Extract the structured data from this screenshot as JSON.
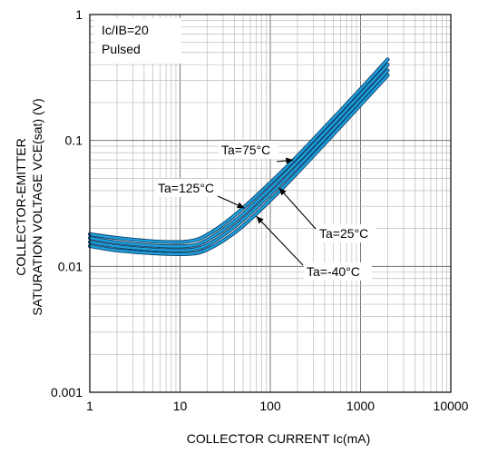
{
  "chart_data": {
    "type": "line",
    "x_scale": "log",
    "y_scale": "log",
    "xlim": [
      1,
      10000
    ],
    "ylim": [
      0.001,
      1
    ],
    "x_ticks": [
      "1",
      "10",
      "100",
      "1000",
      "10000"
    ],
    "y_ticks": [
      "0.001",
      "0.01",
      "0.1",
      "1"
    ],
    "xlabel": "COLLECTOR CURRENT  Ic(mA)",
    "ylabel_line1": "COLLECTOR-EMITTER",
    "ylabel_line2": "SATURATION VOLTAGE  VCE(sat)  (V)",
    "grid": true,
    "condition_line1": "Ic/IB=20",
    "condition_line2": "Pulsed",
    "line_color": "#1ea0dc",
    "series": [
      {
        "name": "Ta=125°C",
        "x": [
          1,
          2,
          5,
          10,
          15,
          20,
          30,
          50,
          100,
          200,
          500,
          1000,
          2000
        ],
        "y": [
          0.018,
          0.0168,
          0.0158,
          0.0156,
          0.0162,
          0.0178,
          0.0215,
          0.029,
          0.046,
          0.075,
          0.15,
          0.255,
          0.44
        ]
      },
      {
        "name": "Ta=75°C",
        "x": [
          1,
          2,
          5,
          10,
          15,
          20,
          30,
          50,
          100,
          200,
          500,
          1000,
          2000
        ],
        "y": [
          0.0168,
          0.0155,
          0.0146,
          0.0144,
          0.0148,
          0.0162,
          0.0195,
          0.026,
          0.0415,
          0.068,
          0.136,
          0.232,
          0.4
        ]
      },
      {
        "name": "Ta=25°C",
        "x": [
          1,
          2,
          5,
          10,
          15,
          20,
          30,
          50,
          100,
          200,
          500,
          1000,
          2000
        ],
        "y": [
          0.0156,
          0.0144,
          0.0136,
          0.0134,
          0.0137,
          0.0148,
          0.0177,
          0.0235,
          0.0375,
          0.0615,
          0.123,
          0.21,
          0.36
        ]
      },
      {
        "name": "Ta=-40°C",
        "x": [
          1,
          2,
          5,
          10,
          15,
          20,
          30,
          50,
          100,
          200,
          500,
          1000,
          2000
        ],
        "y": [
          0.0145,
          0.0134,
          0.0127,
          0.0125,
          0.0127,
          0.0136,
          0.016,
          0.021,
          0.0335,
          0.0555,
          0.112,
          0.192,
          0.33
        ]
      }
    ],
    "annotations": [
      {
        "text": "Ta=75°C",
        "arrow_to": [
          180,
          0.07
        ]
      },
      {
        "text": "Ta=125°C",
        "arrow_to": [
          52,
          0.029
        ]
      },
      {
        "text": "Ta=25°C",
        "arrow_to": [
          125,
          0.042
        ]
      },
      {
        "text": "Ta=-40°C",
        "arrow_to": [
          70,
          0.025
        ]
      }
    ]
  }
}
